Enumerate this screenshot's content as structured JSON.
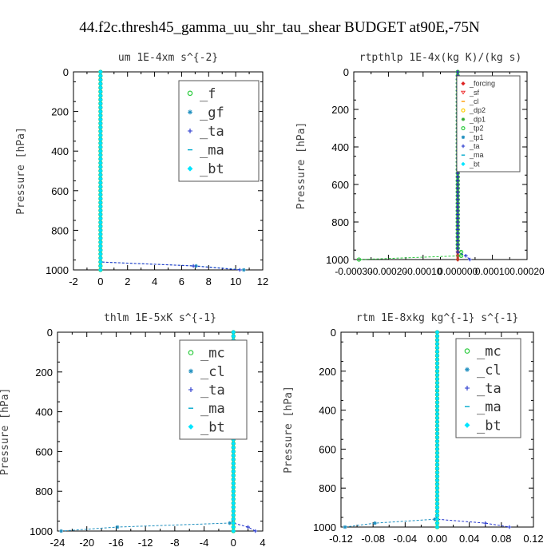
{
  "figure_title": "44.f2c.thresh45_gamma_uu_shr_tau_shear  BUDGET at90E,-75N",
  "chart_data": [
    {
      "type": "line",
      "title": "um  1E-4xm s^{-2}",
      "ylabel": "Pressure [hPa]",
      "xlim": [
        -2,
        12
      ],
      "ylim": [
        1000,
        0
      ],
      "xticks": [
        "-2",
        "0",
        "2",
        "4",
        "6",
        "8",
        "10",
        "12"
      ],
      "xtick_values": [
        -2,
        0,
        2,
        4,
        6,
        8,
        10,
        12
      ],
      "yticks": [
        "0",
        "200",
        "400",
        "600",
        "800",
        "1000"
      ],
      "ytick_values": [
        0,
        200,
        400,
        600,
        800,
        1000
      ],
      "legend_size": "large",
      "legend_items": [
        {
          "name": "_f",
          "color": "#2ecc40",
          "marker": "circle"
        },
        {
          "name": "_gf",
          "color": "#1f8fbf",
          "marker": "star"
        },
        {
          "name": "_ta",
          "color": "#2233cc",
          "marker": "plus"
        },
        {
          "name": "_ma",
          "color": "#00aacc",
          "marker": "dash"
        },
        {
          "name": "_bt",
          "color": "#00e5ff",
          "marker": "diamond"
        }
      ],
      "series": [
        {
          "name": "_f",
          "color": "#2ecc40",
          "marker": "circle",
          "profile": {
            "surface_value": 0
          }
        },
        {
          "name": "_gf",
          "color": "#1f8fbf",
          "marker": "star",
          "profile": {
            "surface_value": 10.6
          }
        },
        {
          "name": "_ta",
          "color": "#2233cc",
          "marker": "plus",
          "profile": {
            "surface_value": 10.3
          }
        },
        {
          "name": "_ma",
          "color": "#00aacc",
          "marker": "dash",
          "profile": {
            "surface_value": 0
          }
        },
        {
          "name": "_bt",
          "color": "#00e5ff",
          "marker": "diamond",
          "profile": {
            "surface_value": 0
          }
        }
      ]
    },
    {
      "type": "line",
      "title": "rtpthlp  1E-4x(kg K)/(kg s)",
      "ylabel": "Pressure [hPa]",
      "xlim": [
        -0.0003,
        0.0002
      ],
      "ylim": [
        1000,
        0
      ],
      "xticks": [
        "-0.00030",
        "-0.00020",
        "-0.00010",
        "0.000000",
        "0.00010",
        "0.00020"
      ],
      "xtick_values": [
        -0.0003,
        -0.0002,
        -0.0001,
        0.0,
        0.0001,
        0.0002
      ],
      "yticks": [
        "0",
        "200",
        "400",
        "600",
        "800",
        "1000"
      ],
      "ytick_values": [
        0,
        200,
        400,
        600,
        800,
        1000
      ],
      "legend_size": "small",
      "legend_items": [
        {
          "name": "_forcing",
          "color": "#dd2222",
          "marker": "diamond"
        },
        {
          "name": "_sf",
          "color": "#ee3333",
          "marker": "triangle"
        },
        {
          "name": "_cl",
          "color": "#ff9900",
          "marker": "dash"
        },
        {
          "name": "_dp2",
          "color": "#ffcc00",
          "marker": "circle"
        },
        {
          "name": "_dp1",
          "color": "#33aa33",
          "marker": "star"
        },
        {
          "name": "_tp2",
          "color": "#2ecc40",
          "marker": "circle"
        },
        {
          "name": "_tp1",
          "color": "#1f8fbf",
          "marker": "star"
        },
        {
          "name": "_ta",
          "color": "#2233cc",
          "marker": "plus"
        },
        {
          "name": "_ma",
          "color": "#00aacc",
          "marker": "dash"
        },
        {
          "name": "_bt",
          "color": "#00e5ff",
          "marker": "diamond"
        }
      ],
      "series": [
        {
          "name": "_forcing",
          "color": "#c0392b",
          "marker": "diamond",
          "profile": {
            "surface_value": 0.0
          }
        },
        {
          "name": "_tp2",
          "color": "#2ecc40",
          "marker": "circle",
          "profile": {
            "surface_value": -0.000285,
            "x_950": 1e-05
          }
        },
        {
          "name": "_ta",
          "color": "#2233cc",
          "marker": "plus",
          "profile": {
            "surface_value": 3.5e-05
          }
        }
      ]
    },
    {
      "type": "line",
      "title": "thlm  1E-5xK s^{-1}",
      "ylabel": "Pressure [hPa]",
      "xlim": [
        -24,
        4
      ],
      "ylim": [
        1000,
        0
      ],
      "xticks": [
        "-24",
        "-20",
        "-16",
        "-12",
        "-8",
        "-4",
        "0",
        "4"
      ],
      "xtick_values": [
        -24,
        -20,
        -16,
        -12,
        -8,
        -4,
        0,
        4
      ],
      "yticks": [
        "0",
        "200",
        "400",
        "600",
        "800",
        "1000"
      ],
      "ytick_values": [
        0,
        200,
        400,
        600,
        800,
        1000
      ],
      "legend_size": "large",
      "legend_items": [
        {
          "name": "_mc",
          "color": "#2ecc40",
          "marker": "circle"
        },
        {
          "name": "_cl",
          "color": "#1f8fbf",
          "marker": "star"
        },
        {
          "name": "_ta",
          "color": "#2233cc",
          "marker": "plus"
        },
        {
          "name": "_ma",
          "color": "#00aacc",
          "marker": "dash"
        },
        {
          "name": "_bt",
          "color": "#00e5ff",
          "marker": "diamond"
        }
      ],
      "series": [
        {
          "name": "_mc",
          "color": "#2ecc40",
          "marker": "circle",
          "profile": {
            "surface_value": 0
          }
        },
        {
          "name": "_cl",
          "color": "#1f8fbf",
          "marker": "star",
          "profile": {
            "surface_value": -23.5,
            "x_960": -0.5
          }
        },
        {
          "name": "_ta",
          "color": "#2233cc",
          "marker": "plus",
          "profile": {
            "surface_value": 3.0
          }
        },
        {
          "name": "_ma",
          "color": "#00aacc",
          "marker": "dash",
          "profile": {
            "surface_value": 0
          }
        },
        {
          "name": "_bt",
          "color": "#00e5ff",
          "marker": "diamond",
          "profile": {
            "surface_value": 0
          }
        }
      ]
    },
    {
      "type": "line",
      "title": "rtm  1E-8xkg kg^{-1} s^{-1}",
      "ylabel": "Pressure [hPa]",
      "xlim": [
        -0.12,
        0.12
      ],
      "ylim": [
        1000,
        0
      ],
      "xticks": [
        "-0.12",
        "-0.08",
        "-0.04",
        "0.00",
        "0.04",
        "0.08",
        "0.12"
      ],
      "xtick_values": [
        -0.12,
        -0.08,
        -0.04,
        0.0,
        0.04,
        0.08,
        0.12
      ],
      "yticks": [
        "0",
        "200",
        "400",
        "600",
        "800",
        "1000"
      ],
      "ytick_values": [
        0,
        200,
        400,
        600,
        800,
        1000
      ],
      "legend_size": "large",
      "legend_items": [
        {
          "name": "_mc",
          "color": "#2ecc40",
          "marker": "circle"
        },
        {
          "name": "_cl",
          "color": "#1f8fbf",
          "marker": "star"
        },
        {
          "name": "_ta",
          "color": "#2233cc",
          "marker": "plus"
        },
        {
          "name": "_ma",
          "color": "#00aacc",
          "marker": "dash"
        },
        {
          "name": "_bt",
          "color": "#00e5ff",
          "marker": "diamond"
        }
      ],
      "series": [
        {
          "name": "_mc",
          "color": "#2ecc40",
          "marker": "circle",
          "profile": {
            "surface_value": 0.0
          }
        },
        {
          "name": "_cl",
          "color": "#1f8fbf",
          "marker": "star",
          "profile": {
            "surface_value": -0.115,
            "x_960": -0.003
          }
        },
        {
          "name": "_ta",
          "color": "#2233cc",
          "marker": "plus",
          "profile": {
            "surface_value": 0.09
          }
        },
        {
          "name": "_ma",
          "color": "#00aacc",
          "marker": "dash",
          "profile": {
            "surface_value": 0.0
          }
        },
        {
          "name": "_bt",
          "color": "#00e5ff",
          "marker": "diamond",
          "profile": {
            "surface_value": 0.0
          }
        }
      ]
    }
  ]
}
